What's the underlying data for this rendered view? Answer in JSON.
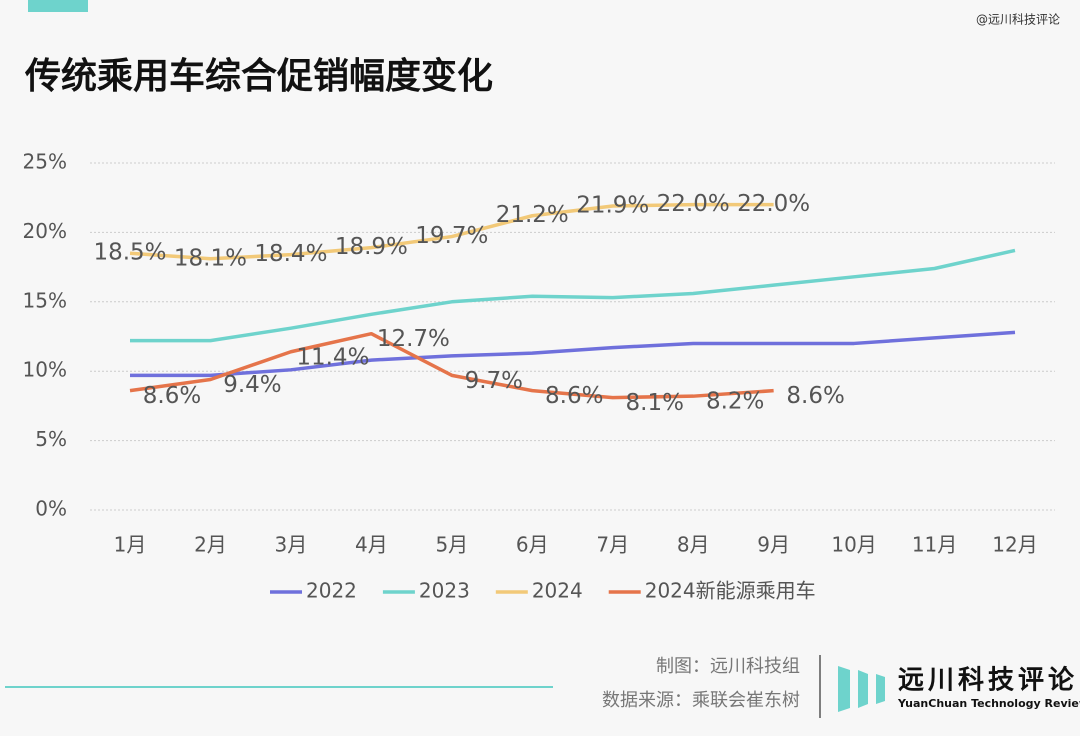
{
  "watermark": "@远川科技评论",
  "footer": {
    "credits": [
      "制图：远川科技组",
      "数据来源：乘联会崔东树"
    ],
    "brand": "远川科技评论",
    "tagline": "YuanChuan Technology Review"
  },
  "chart_data": {
    "type": "line",
    "title": "传统乘用车综合促销幅度变化",
    "categories": [
      "1月",
      "2月",
      "3月",
      "4月",
      "5月",
      "6月",
      "7月",
      "8月",
      "9月",
      "10月",
      "11月",
      "12月"
    ],
    "ylim": [
      0,
      25
    ],
    "yticks": [
      {
        "value": 0,
        "label": "0%"
      },
      {
        "value": 5,
        "label": "5%"
      },
      {
        "value": 10,
        "label": "10%"
      },
      {
        "value": 15,
        "label": "15%"
      },
      {
        "value": 20,
        "label": "20%"
      },
      {
        "value": 25,
        "label": "25%"
      }
    ],
    "grid": true,
    "series": [
      {
        "name": "2022",
        "color": "#6f70dc",
        "values": [
          9.7,
          9.7,
          10.1,
          10.8,
          11.1,
          11.3,
          11.7,
          12.0,
          12.0,
          12.0,
          12.4,
          12.8
        ]
      },
      {
        "name": "2023",
        "color": "#6ed3cc",
        "values": [
          12.2,
          12.2,
          13.1,
          14.1,
          15.0,
          15.4,
          15.3,
          15.6,
          16.2,
          16.8,
          17.4,
          18.7
        ]
      },
      {
        "name": "2024",
        "color": "#f2c978",
        "values": [
          18.5,
          18.1,
          18.4,
          18.9,
          19.7,
          21.2,
          21.9,
          22.0,
          22.0,
          null,
          null,
          null
        ],
        "value_labels": [
          "18.5%",
          "18.1%",
          "18.4%",
          "18.9%",
          "19.7%",
          "21.2%",
          "21.9%",
          "22.0%",
          "22.0%",
          null,
          null,
          null
        ]
      },
      {
        "name": "2024新能源乘用车",
        "color": "#e5744a",
        "values": [
          8.6,
          9.4,
          11.4,
          12.7,
          9.7,
          8.6,
          8.1,
          8.2,
          8.6,
          null,
          null,
          null
        ],
        "value_labels": [
          "8.6%",
          "9.4%",
          "11.4%",
          "12.7%",
          "9.7%",
          "8.6%",
          "8.1%",
          "8.2%",
          "8.6%",
          null,
          null,
          null
        ]
      }
    ]
  }
}
